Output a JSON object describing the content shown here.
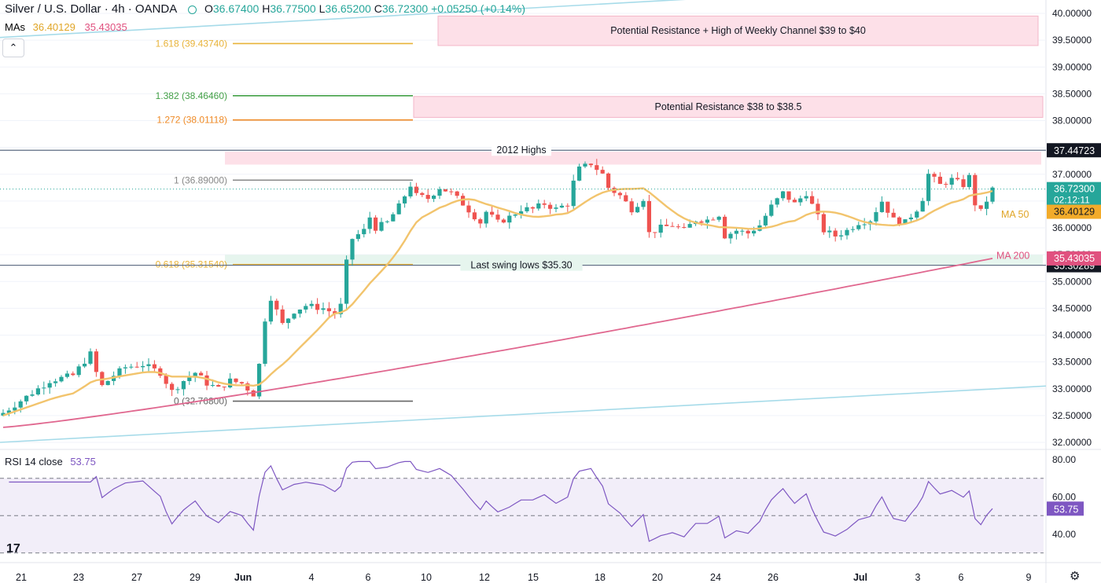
{
  "header": {
    "title": "Silver / U.S. Dollar · 4h · OANDA",
    "open_label": "O",
    "open": "36.67400",
    "high_label": "H",
    "high": "36.77500",
    "low_label": "L",
    "low": "36.65200",
    "close_label": "C",
    "close": "36.72300",
    "change": "+0.05250 (+0.14%)"
  },
  "mas_legend": {
    "label": "MAs",
    "ma50": "36.40129",
    "ma200": "35.43035"
  },
  "collapse_icon": "chevron-up-icon",
  "rsi_legend": {
    "label": "RSI 14 close",
    "value": "53.75"
  },
  "colors": {
    "up": "#26a69a",
    "down": "#ef5350",
    "ma50": "#f2c46d",
    "ma200": "#e0678f",
    "channel": "#a6dbe9",
    "rsi": "#7e57c2",
    "resist_zone": "#fde0e8",
    "support_zone": "#e6f5ee"
  },
  "chart_data": {
    "type": "line",
    "title": "Silver / U.S. Dollar · 4h · OANDA",
    "ylim": [
      31.9,
      40.1
    ],
    "y_ticks": [
      "40.00000",
      "39.50000",
      "39.00000",
      "38.50000",
      "38.00000",
      "37.50000",
      "37.00000",
      "36.50000",
      "36.00000",
      "35.50000",
      "35.00000",
      "34.50000",
      "34.00000",
      "33.50000",
      "33.00000",
      "32.50000",
      "32.00000"
    ],
    "x_ticks": [
      "21",
      "23",
      "27",
      "29",
      "Jun",
      "4",
      "6",
      "10",
      "12",
      "15",
      "18",
      "20",
      "24",
      "26",
      "Jul",
      "3",
      "6",
      "9"
    ],
    "price_series_approx": [
      [
        0,
        32.55
      ],
      [
        4,
        32.85
      ],
      [
        8,
        33.15
      ],
      [
        12,
        33.25
      ],
      [
        15,
        33.65
      ],
      [
        16,
        33.3
      ],
      [
        17,
        33.05
      ],
      [
        19,
        33.25
      ],
      [
        21,
        33.4
      ],
      [
        24,
        33.45
      ],
      [
        27,
        33.3
      ],
      [
        29,
        32.95
      ],
      [
        31,
        33.15
      ],
      [
        33,
        33.3
      ],
      [
        35,
        33.1
      ],
      [
        37,
        33.0
      ],
      [
        39,
        33.15
      ],
      [
        41,
        33.1
      ],
      [
        43,
        32.9
      ],
      [
        44,
        33.45
      ],
      [
        45,
        34.3
      ],
      [
        46,
        34.7
      ],
      [
        48,
        34.2
      ],
      [
        50,
        34.45
      ],
      [
        52,
        34.55
      ],
      [
        55,
        34.5
      ],
      [
        57,
        34.4
      ],
      [
        58,
        34.55
      ],
      [
        59,
        35.35
      ],
      [
        60,
        35.8
      ],
      [
        62,
        35.95
      ],
      [
        63,
        36.2
      ],
      [
        64,
        36.0
      ],
      [
        66,
        36.1
      ],
      [
        68,
        36.4
      ],
      [
        70,
        36.8
      ],
      [
        71,
        36.6
      ],
      [
        73,
        36.55
      ],
      [
        75,
        36.75
      ],
      [
        77,
        36.65
      ],
      [
        79,
        36.45
      ],
      [
        82,
        36.1
      ],
      [
        83,
        36.3
      ],
      [
        85,
        36.1
      ],
      [
        87,
        36.2
      ],
      [
        89,
        36.35
      ],
      [
        91,
        36.35
      ],
      [
        93,
        36.45
      ],
      [
        95,
        36.35
      ],
      [
        97,
        36.45
      ],
      [
        98,
        36.85
      ],
      [
        99,
        37.1
      ],
      [
        101,
        37.2
      ],
      [
        103,
        37.0
      ],
      [
        104,
        36.75
      ],
      [
        106,
        36.6
      ],
      [
        108,
        36.35
      ],
      [
        110,
        36.55
      ],
      [
        111,
        35.9
      ],
      [
        113,
        36.0
      ],
      [
        115,
        36.05
      ],
      [
        117,
        35.95
      ],
      [
        119,
        36.15
      ],
      [
        121,
        36.15
      ],
      [
        123,
        36.25
      ],
      [
        124,
        35.85
      ],
      [
        126,
        35.95
      ],
      [
        128,
        35.9
      ],
      [
        130,
        36.05
      ],
      [
        132,
        36.4
      ],
      [
        134,
        36.65
      ],
      [
        136,
        36.45
      ],
      [
        138,
        36.65
      ],
      [
        140,
        36.2
      ],
      [
        141,
        35.95
      ],
      [
        143,
        35.85
      ],
      [
        145,
        35.95
      ],
      [
        147,
        36.1
      ],
      [
        149,
        36.15
      ],
      [
        151,
        36.5
      ],
      [
        153,
        36.15
      ],
      [
        155,
        36.1
      ],
      [
        157,
        36.35
      ],
      [
        158,
        36.55
      ],
      [
        159,
        37.0
      ],
      [
        161,
        36.8
      ],
      [
        163,
        36.9
      ],
      [
        165,
        36.8
      ],
      [
        166,
        36.95
      ],
      [
        167,
        36.45
      ],
      [
        168,
        36.3
      ],
      [
        170,
        36.72
      ]
    ],
    "series": [
      {
        "name": "MA 50",
        "value": "36.40129"
      },
      {
        "name": "MA 200",
        "value": "35.43035"
      }
    ],
    "fibonacci_levels": [
      {
        "label": "1.618 (39.43740)",
        "ratio": 1.618,
        "value": 39.4374
      },
      {
        "label": "1.382 (38.46460)",
        "ratio": 1.382,
        "value": 38.4646
      },
      {
        "label": "1.272 (38.01118)",
        "ratio": 1.272,
        "value": 38.01118
      },
      {
        "label": "1 (36.89000)",
        "ratio": 1,
        "value": 36.89
      },
      {
        "label": "0.618 (35.31540)",
        "ratio": 0.618,
        "value": 35.3154
      },
      {
        "label": "0 (32.76800)",
        "ratio": 0,
        "value": 32.768
      }
    ],
    "horizontal_lines": [
      {
        "label": "2012 Highs",
        "value": 37.44723,
        "badge": "37.44723"
      },
      {
        "label": "Last swing lows $35.30",
        "value": 35.30289,
        "badge": "35.30289"
      }
    ],
    "zones": [
      {
        "label": "Potential Resistance + High of Weekly Channel $39 to $40",
        "from": 39.4,
        "to": 39.95
      },
      {
        "label": "Potential Resistance $38 to $38.5",
        "from": 38.06,
        "to": 38.45
      },
      {
        "label": "",
        "from": 37.18,
        "to": 37.42
      },
      {
        "label": "",
        "from": 35.3,
        "to": 35.5
      }
    ],
    "price_badges": [
      {
        "value": "36.72300",
        "sub": "02:12:11",
        "kind": "close"
      },
      {
        "value": "36.40129",
        "kind": "ma50"
      },
      {
        "value": "35.43035",
        "kind": "ma200"
      }
    ],
    "annotations": [
      "MA 50",
      "MA 200"
    ],
    "rsi": {
      "label": "RSI 14 close",
      "value": "53.75",
      "ylim": [
        28,
        84
      ],
      "y_ticks": [
        "80.00",
        "60.00",
        "40.00"
      ],
      "upper": 70,
      "lower": 30,
      "mid": 50
    }
  }
}
